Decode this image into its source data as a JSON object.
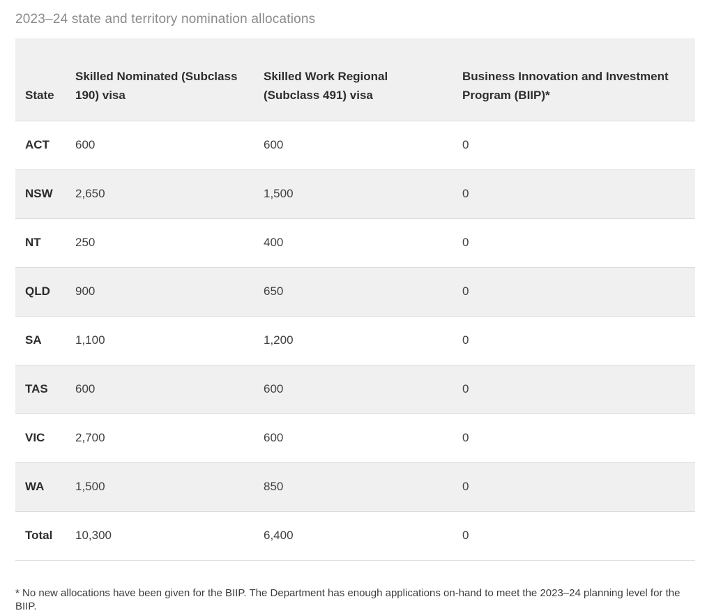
{
  "page": {
    "title": "2023–24 state and territory nomination allocations",
    "footnote": "* No new allocations have been given for the BIIP. The Department has enough applications on-hand to meet the 2023–24 planning level for the BIIP."
  },
  "chart_data": {
    "type": "table",
    "title": "2023–24 state and territory nomination allocations",
    "columns": [
      "State",
      "Skilled Nominated (Subclass 190) visa",
      "Skilled Work Regional (Subclass 491) visa",
      "Business Innovation and Investment Program (BIIP)*"
    ],
    "rows": [
      {
        "state": "ACT",
        "subclass_190": "600",
        "subclass_491": "600",
        "biip": "0"
      },
      {
        "state": "NSW",
        "subclass_190": "2,650",
        "subclass_491": "1,500",
        "biip": "0"
      },
      {
        "state": "NT",
        "subclass_190": "250",
        "subclass_491": "400",
        "biip": "0"
      },
      {
        "state": "QLD",
        "subclass_190": "900",
        "subclass_491": "650",
        "biip": "0"
      },
      {
        "state": "SA",
        "subclass_190": "1,100",
        "subclass_491": "1,200",
        "biip": "0"
      },
      {
        "state": "TAS",
        "subclass_190": "600",
        "subclass_491": "600",
        "biip": "0"
      },
      {
        "state": "VIC",
        "subclass_190": "2,700",
        "subclass_491": "600",
        "biip": "0"
      },
      {
        "state": "WA",
        "subclass_190": "1,500",
        "subclass_491": "850",
        "biip": "0"
      },
      {
        "state": "Total",
        "subclass_190": "10,300",
        "subclass_491": "6,400",
        "biip": "0"
      }
    ],
    "layout": {
      "zebra_striping": true,
      "header_align": "bottom"
    }
  },
  "colors": {
    "title_text": "#8a8a8a",
    "header_bg": "#f0f0f0",
    "row_alt_bg": "#f0f0f0",
    "row_bg": "#ffffff",
    "border": "#dcdcdc",
    "body_text": "#3f3f3f",
    "bold_text": "#2c2c2c"
  }
}
